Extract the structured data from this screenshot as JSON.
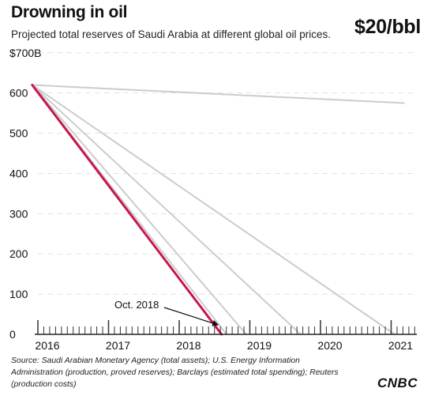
{
  "title": "Drowning in oil",
  "subtitle": "Projected total reserves of Saudi Arabia at different global oil prices.",
  "price_label": "$20/bbl",
  "source": "Source: Saudi Arabian Monetary Agency (total assets); U.S. Energy Information Administration (production, proved reserves); Barclays (estimated total spending); Reuters (production costs)",
  "logo": "CNBC",
  "colors": {
    "highlight": "#c8174a",
    "other_series": "#cccccc",
    "text": "#111111",
    "grid": "#e2e2e2"
  },
  "chart_data": {
    "type": "line",
    "title": "Drowning in oil",
    "subtitle": "Projected total reserves of Saudi Arabia at different global oil prices.",
    "xlabel": "",
    "ylabel": "",
    "xlim": [
      2016.0,
      2021.3
    ],
    "ylim": [
      0,
      700
    ],
    "y_ticks": [
      0,
      100,
      200,
      300,
      400,
      500,
      600,
      700
    ],
    "y_tick_labels": [
      "0",
      "100",
      "200",
      "300",
      "400",
      "500",
      "600",
      "$700B"
    ],
    "x_ticks": [
      2016,
      2017,
      2018,
      2019,
      2020,
      2021
    ],
    "x_tick_labels": [
      "2016",
      "2017",
      "2018",
      "2019",
      "2020",
      "2021"
    ],
    "grid": true,
    "highlight_series": "$20/bbl",
    "series": [
      {
        "name": "$20/bbl",
        "highlight": true,
        "points": [
          [
            2015.92,
            620
          ],
          [
            2018.6,
            0
          ]
        ]
      },
      {
        "points": [
          [
            2015.92,
            620
          ],
          [
            2018.67,
            0
          ]
        ]
      },
      {
        "points": [
          [
            2015.92,
            620
          ],
          [
            2018.95,
            0
          ]
        ]
      },
      {
        "points": [
          [
            2015.92,
            620
          ],
          [
            2019.72,
            0
          ]
        ]
      },
      {
        "points": [
          [
            2015.92,
            620
          ],
          [
            2021.05,
            0
          ]
        ]
      },
      {
        "points": [
          [
            2015.92,
            620
          ],
          [
            2021.18,
            575
          ]
        ]
      }
    ],
    "annotations": [
      {
        "text": "Oct. 2018",
        "points_to": [
          2018.55,
          0
        ]
      }
    ]
  }
}
